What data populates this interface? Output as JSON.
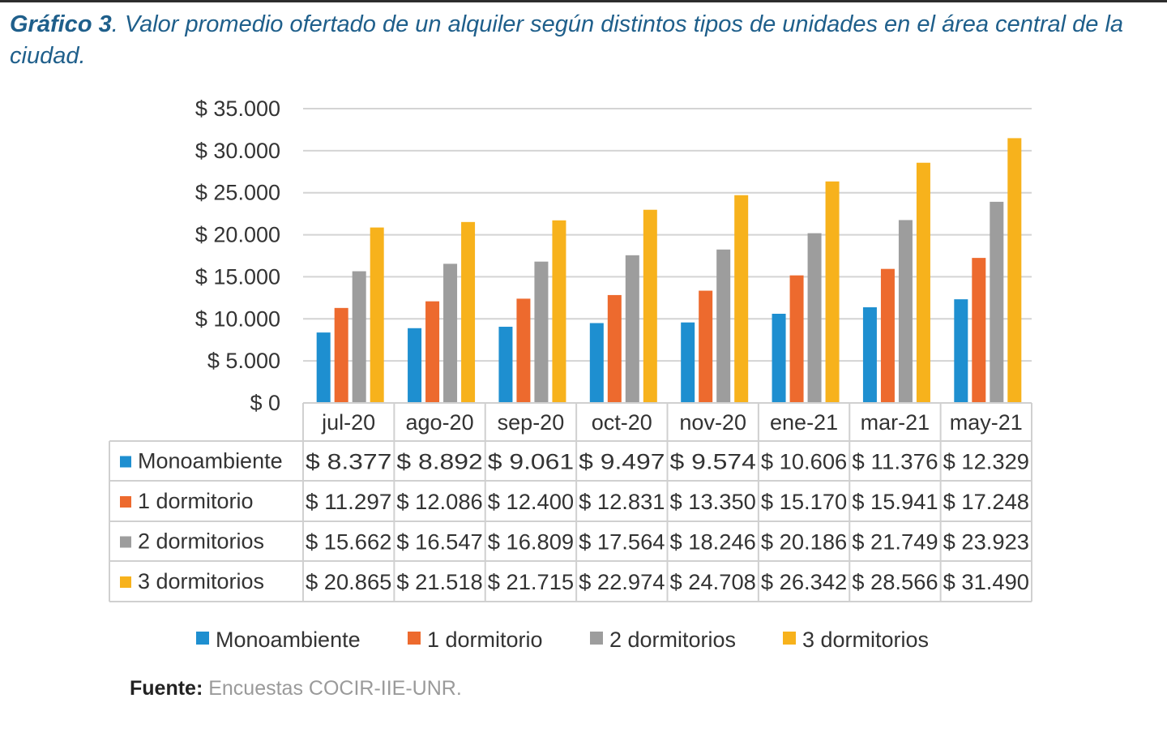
{
  "title_lead": "Gráfico 3",
  "title_rest": ". Valor promedio ofertado de un alquiler según distintos tipos de unidades en el área central de la ciudad.",
  "source_label": "Fuente:",
  "source_text": " Encuestas COCIR-IIE-UNR.",
  "colors": {
    "title": "#1f5f8b",
    "grid": "#d4d4d4",
    "table_border": "#d0d0d0",
    "text": "#333333"
  },
  "chart_data": {
    "type": "bar",
    "categories": [
      "jul-20",
      "ago-20",
      "sep-20",
      "oct-20",
      "nov-20",
      "ene-21",
      "mar-21",
      "may-21"
    ],
    "ylim": [
      0,
      35000
    ],
    "y_ticks": [
      0,
      5000,
      10000,
      15000,
      20000,
      25000,
      30000,
      35000
    ],
    "y_tick_labels": [
      "$ 0",
      "$ 5.000",
      "$ 10.000",
      "$ 15.000",
      "$ 20.000",
      "$ 25.000",
      "$ 30.000",
      "$ 35.000"
    ],
    "grid": true,
    "legend_position": "bottom",
    "series": [
      {
        "name": "Monoambiente",
        "color": "#1e8fd0",
        "values": [
          8377,
          8892,
          9061,
          9497,
          9574,
          10606,
          11376,
          12329
        ],
        "labels": [
          "$ 8.377",
          "$ 8.892",
          "$ 9.061",
          "$ 9.497",
          "$ 9.574",
          "$ 10.606",
          "$ 11.376",
          "$ 12.329"
        ]
      },
      {
        "name": "1 dormitorio",
        "color": "#ed6a2e",
        "values": [
          11297,
          12086,
          12400,
          12831,
          13350,
          15170,
          15941,
          17248
        ],
        "labels": [
          "$ 11.297",
          "$ 12.086",
          "$ 12.400",
          "$ 12.831",
          "$ 13.350",
          "$ 15.170",
          "$ 15.941",
          "$ 17.248"
        ]
      },
      {
        "name": "2 dormitorios",
        "color": "#9d9d9d",
        "values": [
          15662,
          16547,
          16809,
          17564,
          18246,
          20186,
          21749,
          23923
        ],
        "labels": [
          "$ 15.662",
          "$ 16.547",
          "$ 16.809",
          "$ 17.564",
          "$ 18.246",
          "$ 20.186",
          "$ 21.749",
          "$ 23.923"
        ]
      },
      {
        "name": "3 dormitorios",
        "color": "#f7b21c",
        "values": [
          20865,
          21518,
          21715,
          22974,
          24708,
          26342,
          28566,
          31490
        ],
        "labels": [
          "$ 20.865",
          "$ 21.518",
          "$ 21.715",
          "$ 22.974",
          "$ 24.708",
          "$ 26.342",
          "$ 28.566",
          "$ 31.490"
        ]
      }
    ]
  }
}
